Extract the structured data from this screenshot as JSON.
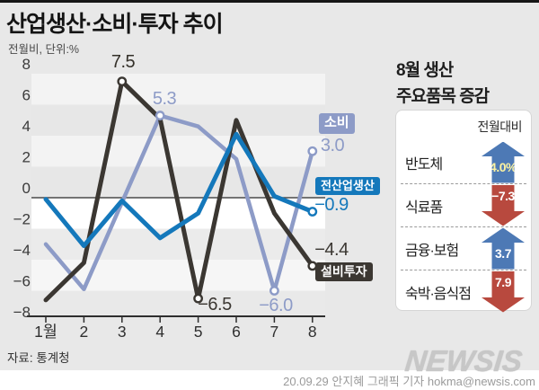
{
  "title": "산업생산·소비·투자 추이",
  "subtitle": "전월비, 단위:%",
  "source": "자료: 통계청",
  "logo": "NEWSIS",
  "credit": "20.09.29 안지혜 그래픽 기자 hokma@newsis.com",
  "chart_data": {
    "type": "line",
    "categories": [
      "1월",
      "2",
      "3",
      "4",
      "5",
      "6",
      "7",
      "8"
    ],
    "ylim": [
      -8,
      8
    ],
    "ytick_step": 2,
    "grid": "striped-horizontal-bands",
    "legend_position": "inline-right",
    "series": [
      {
        "key": "consumption",
        "name": "소비",
        "color": "#8d9bc7",
        "width": 4.5,
        "values": [
          -3.0,
          -5.9,
          -0.3,
          5.3,
          4.6,
          2.5,
          -6.0,
          3.0
        ],
        "marked_points": [
          3,
          6,
          7
        ]
      },
      {
        "key": "facility-investment",
        "name": "설비투자",
        "color": "#3b3732",
        "width": 5,
        "values": [
          -6.6,
          -4.2,
          7.5,
          5.1,
          -6.5,
          5.0,
          -1.0,
          -4.4
        ],
        "marked_points": [
          2,
          4,
          7
        ]
      },
      {
        "key": "all-industry-production",
        "name": "전산업생산",
        "color": "#1478bb",
        "width": 5,
        "values": [
          -0.1,
          -3.1,
          -0.2,
          -2.6,
          -1.0,
          4.1,
          0.1,
          -0.9
        ],
        "marked_points": [
          7
        ]
      }
    ],
    "legend": {
      "consumption": "소비",
      "all_industry": "전산업생산",
      "facility": "설비투자"
    },
    "point_labels": {
      "facility_mar": "7.5",
      "consumption_apr": "5.3",
      "consumption_aug": "3.0",
      "all_industry_aug": "−0.9",
      "facility_aug": "−4.4",
      "facility_may": "−6.5",
      "consumption_jul": "−6.0"
    }
  },
  "side_panel": {
    "title_line1": "8월 생산",
    "title_line2": "주요품목 증감",
    "header": "전월대비",
    "up_color": "#4d79b5",
    "down_color": "#b8493e",
    "highlight_text_color": "#fdf3a0",
    "rows": [
      {
        "label": "반도체",
        "value": "4.0%",
        "direction": "up",
        "value_color": "highlight"
      },
      {
        "label": "식료품",
        "value": "−7.3",
        "direction": "down",
        "value_color": "white"
      },
      {
        "label": "금융·보험",
        "value": "3.7",
        "direction": "up",
        "value_color": "white"
      },
      {
        "label": "숙박·음식점",
        "value": "7.9",
        "direction": "down",
        "value_color": "white"
      }
    ]
  }
}
